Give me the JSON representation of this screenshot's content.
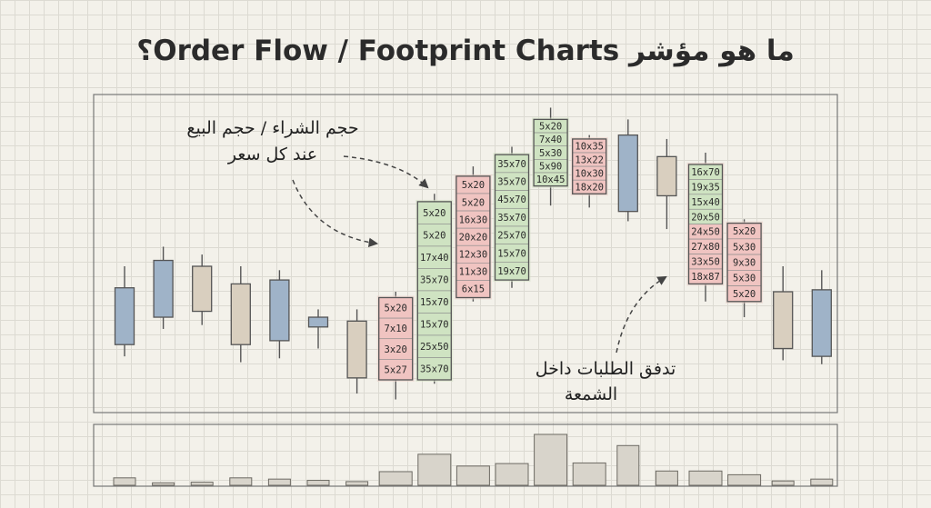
{
  "title": "ما هو مؤشر Order Flow / Footprint Charts؟",
  "annotations": {
    "bid_ask_line1": "حجم الشراء / حجم البيع",
    "bid_ask_line2": "عند كل سعر",
    "flow_line1": "تدفق الطلبات داخل",
    "flow_line2": "الشمعة"
  },
  "colors": {
    "bull_body": "#d6e2c6",
    "bear_body": "#ead0c8",
    "blue_candle": "#9fb3c8",
    "tan_candle": "#d9cfbf",
    "buy_cell": "#cfe3c2",
    "sell_cell": "#f0c4c1",
    "outline": "#555555",
    "volume_bar": "#d8d4cb"
  },
  "chart_data": {
    "type": "candlestick-footprint",
    "grid": true,
    "candles": [
      {
        "high": 7.1,
        "low": 2.5,
        "open": 6.0,
        "close": 3.1,
        "style": "blue",
        "footprint": []
      },
      {
        "high": 8.1,
        "low": 3.9,
        "open": 7.4,
        "close": 4.5,
        "style": "blue",
        "footprint": []
      },
      {
        "high": 7.7,
        "low": 4.1,
        "open": 7.1,
        "close": 4.8,
        "style": "tan",
        "footprint": []
      },
      {
        "high": 7.1,
        "low": 2.2,
        "open": 6.2,
        "close": 3.1,
        "style": "tan",
        "footprint": []
      },
      {
        "high": 6.9,
        "low": 2.4,
        "open": 6.4,
        "close": 3.3,
        "style": "blue",
        "footprint": []
      },
      {
        "high": 4.9,
        "low": 2.9,
        "open": 4.5,
        "close": 4.0,
        "style": "blue",
        "footprint": []
      },
      {
        "high": 4.9,
        "low": 0.6,
        "open": 4.3,
        "close": 1.4,
        "style": "tan",
        "footprint": []
      },
      {
        "high": 5.8,
        "low": 0.3,
        "open": 1.3,
        "close": 5.5,
        "style": "bear",
        "footprint": [
          "5x20",
          "7x10",
          "3x20",
          "5x27"
        ]
      },
      {
        "high": 10.8,
        "low": 1.1,
        "open": 1.3,
        "close": 10.4,
        "style": "bull",
        "footprint": [
          "5x20",
          "5x20",
          "17x40",
          "35x70",
          "15x70",
          "15x70",
          "25x50",
          "35x70"
        ]
      },
      {
        "high": 12.2,
        "low": 5.3,
        "open": 5.5,
        "close": 11.7,
        "style": "bear",
        "footprint": [
          "5x20",
          "5x20",
          "16x30",
          "20x20",
          "12x30",
          "11x30",
          "6x15"
        ]
      },
      {
        "high": 13.2,
        "low": 6.0,
        "open": 6.4,
        "close": 12.8,
        "style": "bull",
        "footprint": [
          "35x70",
          "35x70",
          "45x70",
          "35x70",
          "25x70",
          "15x70",
          "19x70"
        ]
      },
      {
        "high": 15.2,
        "low": 10.2,
        "open": 11.2,
        "close": 14.6,
        "style": "bull",
        "footprint": [
          "5x20",
          "7x40",
          "5x30",
          "5x90",
          "10x45"
        ]
      },
      {
        "high": 13.8,
        "low": 10.1,
        "open": 13.6,
        "close": 10.8,
        "style": "bear",
        "footprint": [
          "10x35",
          "13x22",
          "10x30",
          "18x20"
        ]
      },
      {
        "high": 14.6,
        "low": 9.4,
        "open": 13.8,
        "close": 9.9,
        "style": "blue",
        "footprint": []
      },
      {
        "high": 13.6,
        "low": 9.0,
        "open": 12.7,
        "close": 10.7,
        "style": "tan",
        "footprint": []
      },
      {
        "high": 12.9,
        "low": 5.3,
        "open": 12.3,
        "close": 6.2,
        "style": "mixed",
        "buy_rows": 4,
        "footprint": [
          "16x70",
          "19x35",
          "15x40",
          "20x50",
          "24x50",
          "27x80",
          "33x50",
          "18x87"
        ]
      },
      {
        "high": 9.5,
        "low": 4.5,
        "open": 9.3,
        "close": 5.3,
        "style": "bear",
        "footprint": [
          "5x20",
          "5x30",
          "9x30",
          "5x30",
          "5x20"
        ]
      },
      {
        "high": 7.1,
        "low": 2.3,
        "open": 5.8,
        "close": 2.9,
        "style": "tan",
        "footprint": []
      },
      {
        "high": 6.9,
        "low": 2.1,
        "open": 5.9,
        "close": 2.5,
        "style": "blue",
        "footprint": []
      }
    ],
    "volume": [
      12,
      4,
      5,
      12,
      10,
      8,
      6,
      22,
      50,
      31,
      35,
      82,
      36,
      64,
      23,
      23,
      17,
      7,
      10
    ]
  }
}
